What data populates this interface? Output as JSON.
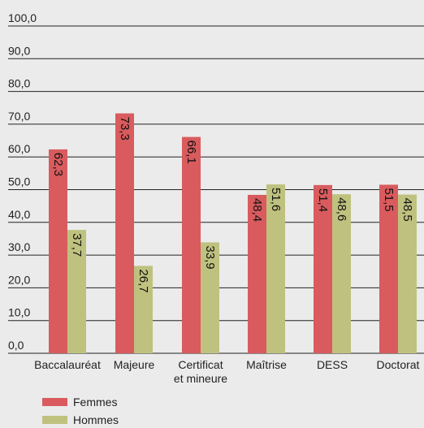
{
  "chart_data": {
    "type": "bar",
    "orientation": "vertical",
    "categories": [
      [
        "Baccalauréat"
      ],
      [
        "Majeure"
      ],
      [
        "Certificat",
        "et mineure"
      ],
      [
        "Maîtrise"
      ],
      [
        "DESS"
      ],
      [
        "Doctorat"
      ]
    ],
    "series": [
      {
        "name": "Femmes",
        "color": "#d95b5e",
        "values": [
          62.3,
          73.3,
          66.1,
          48.4,
          51.4,
          51.5
        ],
        "labels": [
          "62,3",
          "73,3",
          "66,1",
          "48,4",
          "51,4",
          "51,5"
        ]
      },
      {
        "name": "Hommes",
        "color": "#bfc27f",
        "values": [
          37.7,
          26.7,
          33.9,
          51.6,
          48.6,
          48.5
        ],
        "labels": [
          "37,7",
          "26,7",
          "33,9",
          "51,6",
          "48,6",
          "48,5"
        ]
      }
    ],
    "yticks": [
      "0,0",
      "10,0",
      "20,0",
      "30,0",
      "40,0",
      "50,0",
      "60,0",
      "70,0",
      "80,0",
      "90,0",
      "100,0"
    ],
    "ylim": [
      0,
      100
    ],
    "grid": true,
    "legend": "bottom-left",
    "gridline_color": "#222222",
    "background": "#ebebeb"
  }
}
